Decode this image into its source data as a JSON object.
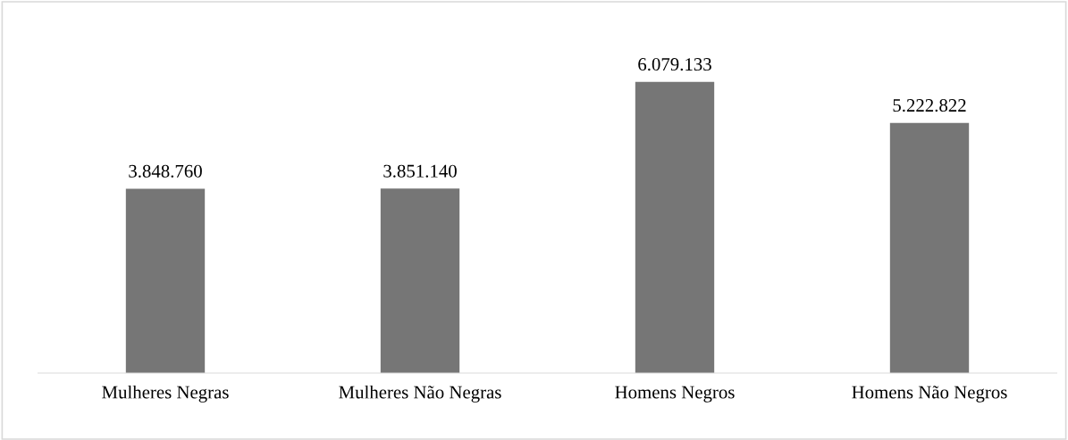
{
  "chart_data": {
    "type": "bar",
    "categories": [
      "Mulheres Negras",
      "Mulheres Não Negras",
      "Homens Negros",
      "Homens Não Negros"
    ],
    "values": [
      3848760,
      3851140,
      6079133,
      5222822
    ],
    "value_labels": [
      "3.848.760",
      "3.851.140",
      "6.079.133",
      "5.222.822"
    ],
    "color": "#767676",
    "grid": false,
    "legend": false
  }
}
